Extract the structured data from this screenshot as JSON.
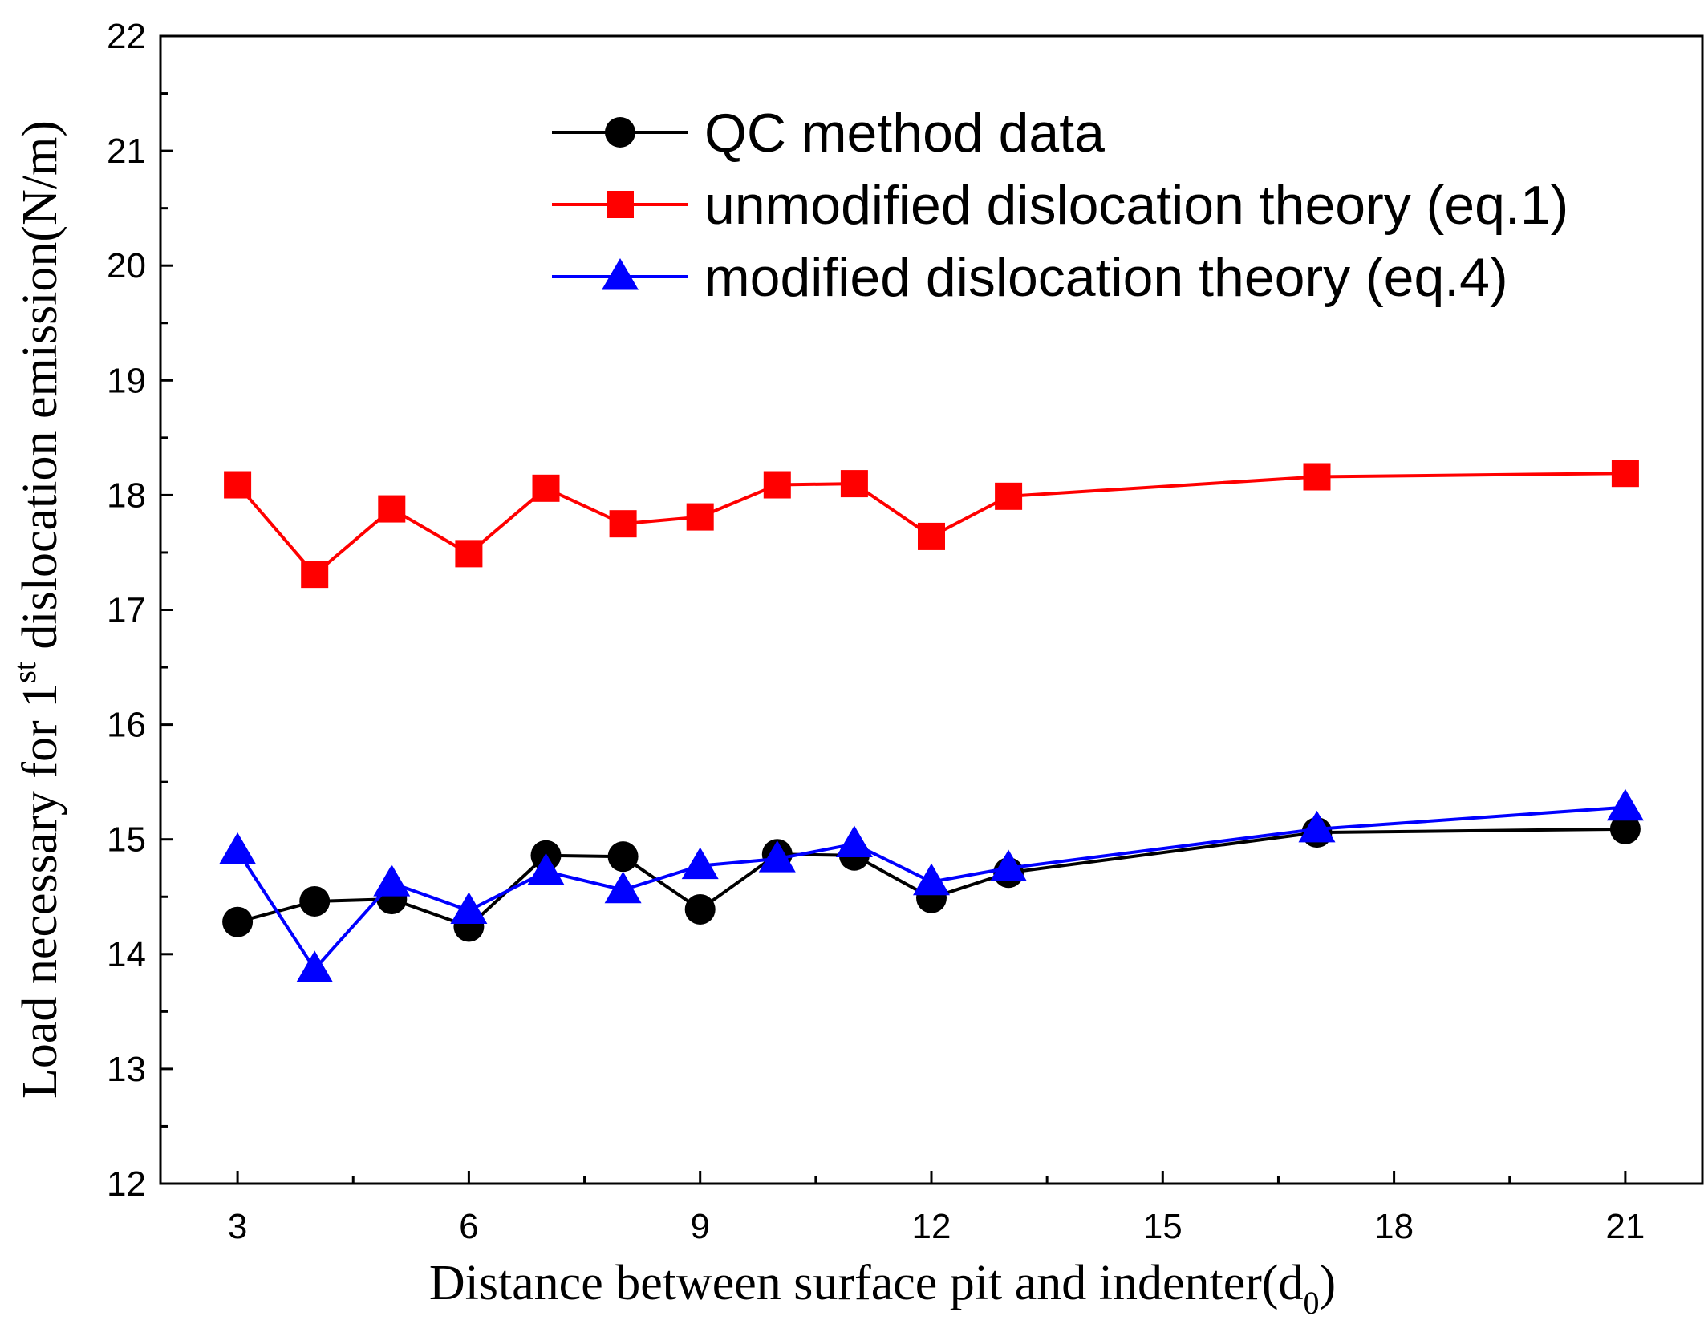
{
  "chart_data": {
    "type": "line",
    "title": "",
    "xlabel": {
      "main": "Distance between surface pit and indenter(d",
      "sub": "0",
      "close": ")"
    },
    "ylabel": {
      "main": "Load necessary for 1",
      "sup": "st",
      "rest": " dislocation emission(N/m)"
    },
    "xlim": [
      2,
      22
    ],
    "ylim": [
      12,
      22
    ],
    "xticks": [
      3,
      6,
      9,
      12,
      15,
      18,
      21
    ],
    "yticks": [
      12,
      13,
      14,
      15,
      16,
      17,
      18,
      19,
      20,
      21,
      22
    ],
    "grid": false,
    "legend_position": "top-center",
    "x": [
      3,
      4,
      5,
      6,
      7,
      8,
      9,
      10,
      11,
      12,
      13,
      17,
      21
    ],
    "series": [
      {
        "name": "QC method data",
        "color": "#000000",
        "marker": "circle",
        "values": [
          14.28,
          14.46,
          14.48,
          14.24,
          14.86,
          14.85,
          14.39,
          14.87,
          14.86,
          14.49,
          14.71,
          15.06,
          15.09
        ]
      },
      {
        "name": "unmodified dislocation theory (eq.1)",
        "color": "#ff0000",
        "marker": "square",
        "values": [
          18.09,
          17.31,
          17.88,
          17.49,
          18.06,
          17.75,
          17.81,
          18.09,
          18.1,
          17.64,
          17.99,
          18.16,
          18.19
        ]
      },
      {
        "name": "modified dislocation theory (eq.4)",
        "color": "#0000ff",
        "marker": "triangle",
        "values": [
          14.9,
          13.87,
          14.62,
          14.38,
          14.72,
          14.56,
          14.77,
          14.83,
          14.96,
          14.63,
          14.75,
          15.09,
          15.28
        ]
      }
    ]
  }
}
